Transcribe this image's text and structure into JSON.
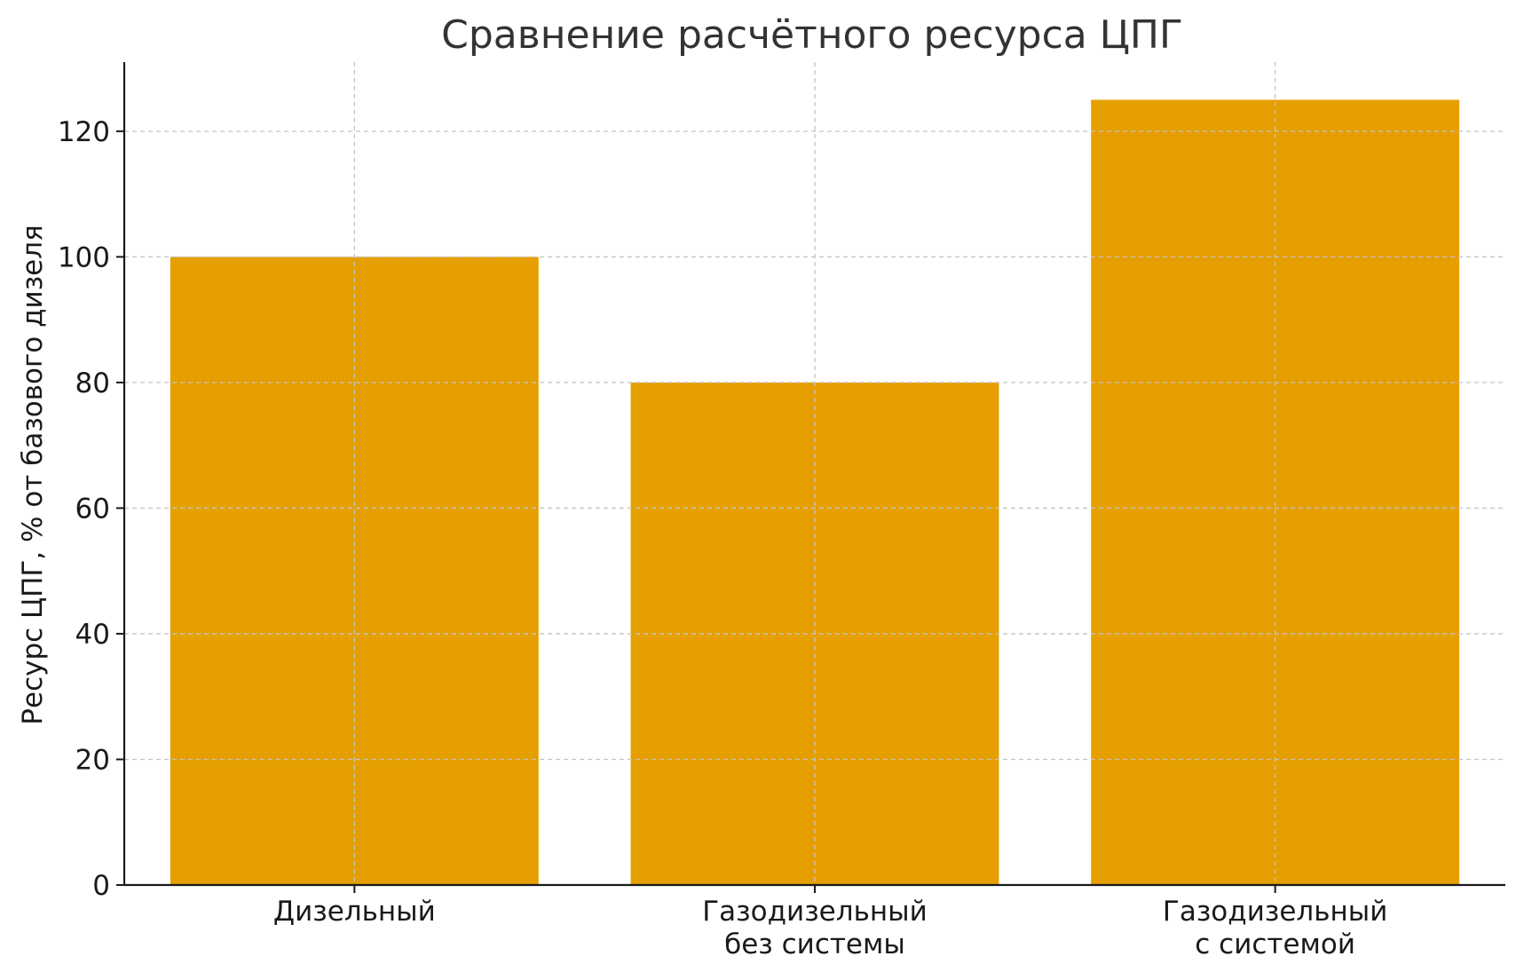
{
  "chart_data": {
    "type": "bar",
    "title": "Сравнение расчётного ресурса ЦПГ",
    "xlabel": "",
    "ylabel": "Ресурс ЦПГ, % от базового дизеля",
    "categories": [
      [
        "Дизельный"
      ],
      [
        "Газодизельный",
        "без системы"
      ],
      [
        "Газодизельный",
        "с системой"
      ]
    ],
    "values": [
      100,
      80,
      125
    ],
    "ylim": [
      0,
      131
    ],
    "yticks": [
      0,
      20,
      40,
      60,
      80,
      100,
      120
    ],
    "bar_color": "#E69F00",
    "grid": true,
    "legend": "none"
  }
}
